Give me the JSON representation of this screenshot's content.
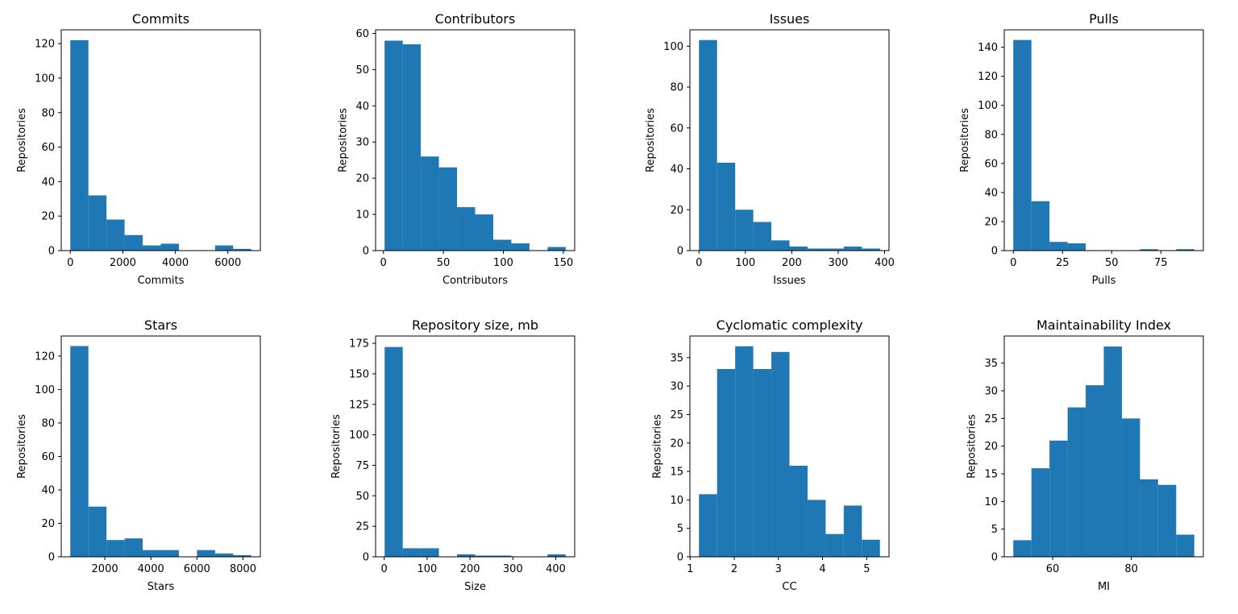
{
  "chart_data": [
    {
      "type": "bar",
      "title": "Commits",
      "xlabel": "Commits",
      "ylabel": "Repositories",
      "bin_edges": [
        0,
        689,
        1378,
        2067,
        2756,
        3445,
        4134,
        4823,
        5512,
        6201,
        6890
      ],
      "values": [
        122,
        32,
        18,
        9,
        3,
        4,
        0,
        0,
        3,
        1
      ],
      "xlim": [
        -345,
        7235
      ],
      "ylim": [
        0,
        128
      ],
      "xticks": [
        0,
        2000,
        4000,
        6000
      ],
      "yticks": [
        0,
        20,
        40,
        60,
        80,
        100,
        120
      ]
    },
    {
      "type": "bar",
      "title": "Contributors",
      "xlabel": "Contributors",
      "ylabel": "Repositories",
      "bin_edges": [
        1,
        16.1,
        31.2,
        46.3,
        61.4,
        76.5,
        91.6,
        106.7,
        121.8,
        136.9,
        152
      ],
      "values": [
        58,
        57,
        26,
        23,
        12,
        10,
        3,
        2,
        0,
        1
      ],
      "xlim": [
        -6.5,
        159.5
      ],
      "ylim": [
        0,
        61
      ],
      "xticks": [
        0,
        50,
        100,
        150
      ],
      "yticks": [
        0,
        10,
        20,
        30,
        40,
        50,
        60
      ]
    },
    {
      "type": "bar",
      "title": "Issues",
      "xlabel": "Issues",
      "ylabel": "Repositories",
      "bin_edges": [
        0,
        39,
        78,
        117,
        156,
        195,
        234,
        273,
        312,
        351,
        390
      ],
      "values": [
        103,
        43,
        20,
        14,
        5,
        2,
        1,
        1,
        2,
        1
      ],
      "xlim": [
        -19.5,
        409.5
      ],
      "ylim": [
        0,
        108
      ],
      "xticks": [
        0,
        100,
        200,
        300,
        400
      ],
      "yticks": [
        0,
        20,
        40,
        60,
        80,
        100
      ]
    },
    {
      "type": "bar",
      "title": "Pulls",
      "xlabel": "Pulls",
      "ylabel": "Repositories",
      "bin_edges": [
        0,
        9.2,
        18.4,
        27.6,
        36.8,
        46,
        55.2,
        64.4,
        73.6,
        82.8,
        92
      ],
      "values": [
        145,
        34,
        6,
        5,
        0,
        0,
        0,
        1,
        0,
        1
      ],
      "xlim": [
        -4.6,
        96.6
      ],
      "ylim": [
        0,
        152
      ],
      "xticks": [
        0,
        25,
        50,
        75
      ],
      "yticks": [
        0,
        20,
        40,
        60,
        80,
        100,
        120,
        140
      ]
    },
    {
      "type": "bar",
      "title": "Stars",
      "xlabel": "Stars",
      "ylabel": "Repositories",
      "bin_edges": [
        500,
        1286,
        2072,
        2858,
        3644,
        4430,
        5216,
        6002,
        6788,
        7574,
        8360
      ],
      "values": [
        126,
        30,
        10,
        11,
        4,
        4,
        0,
        4,
        2,
        1
      ],
      "xlim": [
        107,
        8753
      ],
      "ylim": [
        0,
        132
      ],
      "xticks": [
        2000,
        4000,
        6000,
        8000
      ],
      "yticks": [
        0,
        20,
        40,
        60,
        80,
        100,
        120
      ]
    },
    {
      "type": "bar",
      "title": "Repository size, mb",
      "xlabel": "Size",
      "ylabel": "Repositories",
      "bin_edges": [
        1,
        43.2,
        85.4,
        127.6,
        169.8,
        212,
        254.2,
        296.4,
        338.6,
        380.8,
        423
      ],
      "values": [
        172,
        7,
        7,
        0,
        2,
        1,
        1,
        0,
        0,
        2
      ],
      "xlim": [
        -20.1,
        444.1
      ],
      "ylim": [
        0,
        181
      ],
      "xticks": [
        0,
        100,
        200,
        300,
        400
      ],
      "yticks": [
        0,
        25,
        50,
        75,
        100,
        125,
        150,
        175
      ]
    },
    {
      "type": "bar",
      "title": "Cyclomatic complexity",
      "xlabel": "CC",
      "ylabel": "Repositories",
      "bin_edges": [
        1.2,
        1.61,
        2.02,
        2.43,
        2.84,
        3.25,
        3.66,
        4.07,
        4.48,
        4.89,
        5.3
      ],
      "values": [
        11,
        33,
        37,
        33,
        36,
        16,
        10,
        4,
        9,
        3
      ],
      "xlim": [
        0.995,
        5.505
      ],
      "ylim": [
        0,
        38.8
      ],
      "xticks": [
        1,
        2,
        3,
        4,
        5
      ],
      "yticks": [
        0,
        5,
        10,
        15,
        20,
        25,
        30,
        35
      ]
    },
    {
      "type": "bar",
      "title": "Maintainability Index",
      "xlabel": "MI",
      "ylabel": "Repositories",
      "bin_edges": [
        50,
        54.6,
        59.2,
        63.8,
        68.4,
        73,
        77.6,
        82.2,
        86.8,
        91.4,
        96
      ],
      "values": [
        3,
        16,
        21,
        27,
        31,
        38,
        25,
        14,
        13,
        4
      ],
      "xlim": [
        47.7,
        98.3
      ],
      "ylim": [
        0,
        39.9
      ],
      "xticks": [
        60,
        80
      ],
      "yticks": [
        0,
        5,
        10,
        15,
        20,
        25,
        30,
        35
      ]
    }
  ],
  "colors": {
    "bar": "#1f77b4",
    "axis": "#000000"
  }
}
